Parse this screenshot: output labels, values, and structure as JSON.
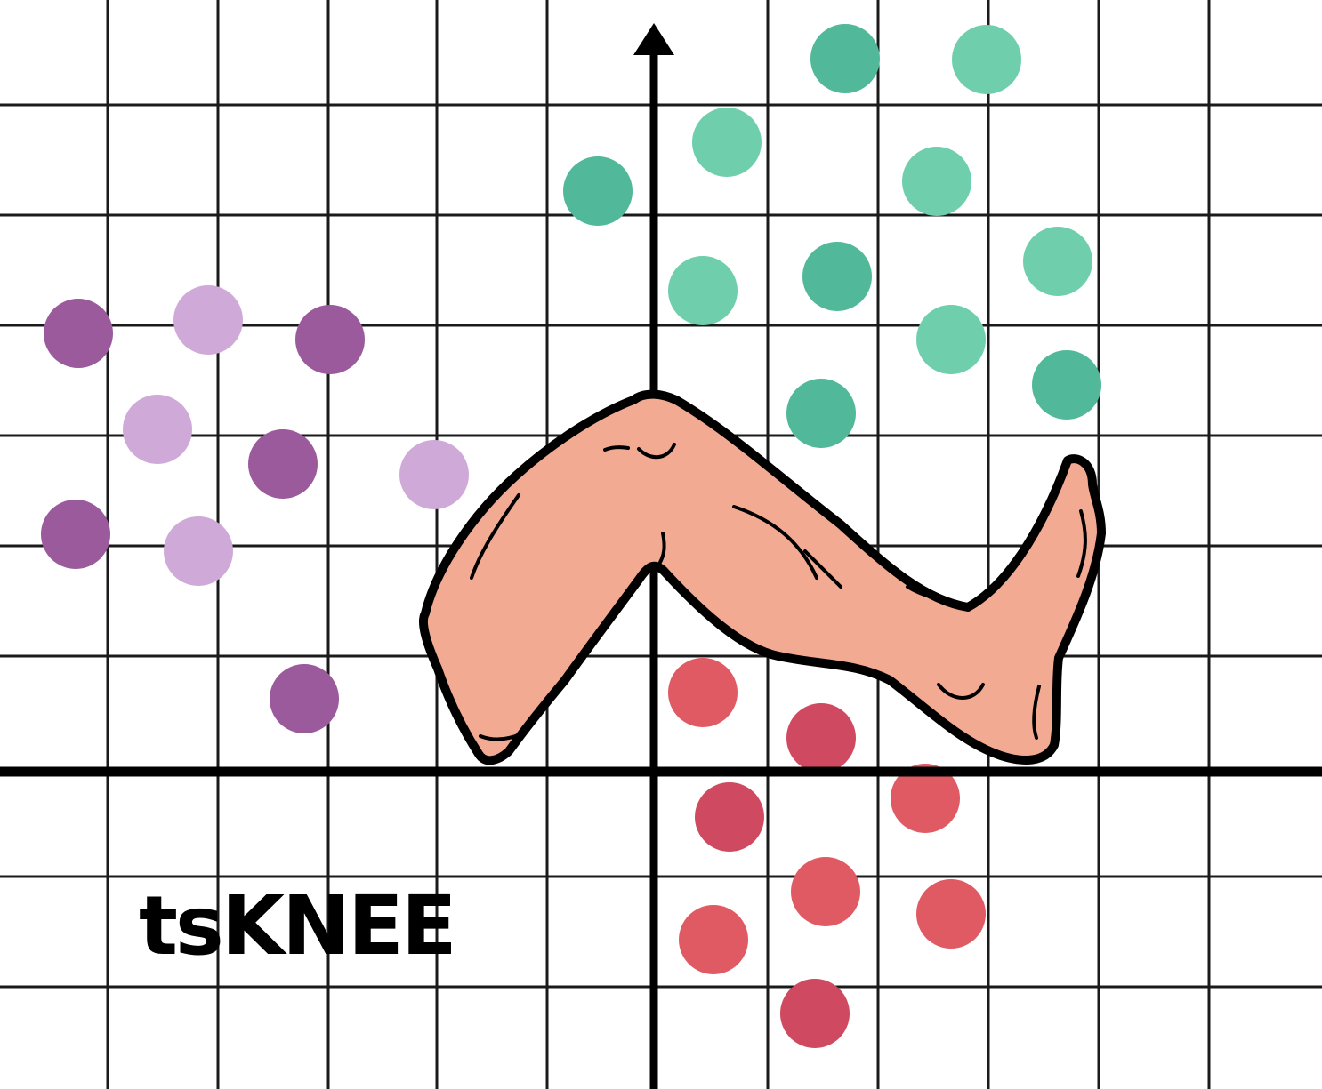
{
  "logo": {
    "text": "tsKNEE"
  },
  "colors": {
    "grid": "#1a1a1a",
    "axis": "#000000",
    "leg_fill": "#f2aa92",
    "leg_stroke": "#000000",
    "cluster_purple_dark": "#9a5a9b",
    "cluster_purple_light": "#cfaad8",
    "cluster_green_dark": "#52b89a",
    "cluster_green_light": "#6fcfad",
    "cluster_red": "#e05a64",
    "cluster_red_dark": "#cf4a60"
  },
  "clusters": [
    {
      "name": "purple",
      "points": [
        {
          "tone": "dark"
        },
        {
          "tone": "light"
        },
        {
          "tone": "dark"
        },
        {
          "tone": "light"
        },
        {
          "tone": "dark"
        },
        {
          "tone": "light"
        },
        {
          "tone": "dark"
        },
        {
          "tone": "light"
        },
        {
          "tone": "dark"
        }
      ]
    },
    {
      "name": "green",
      "points": [
        {
          "tone": "dark"
        },
        {
          "tone": "light"
        },
        {
          "tone": "light"
        },
        {
          "tone": "dark"
        },
        {
          "tone": "light"
        },
        {
          "tone": "light"
        },
        {
          "tone": "dark"
        },
        {
          "tone": "light"
        },
        {
          "tone": "light"
        },
        {
          "tone": "dark"
        },
        {
          "tone": "dark"
        }
      ]
    },
    {
      "name": "red",
      "points": [
        {
          "tone": "light"
        },
        {
          "tone": "dark"
        },
        {
          "tone": "dark"
        },
        {
          "tone": "light"
        },
        {
          "tone": "light"
        },
        {
          "tone": "light"
        },
        {
          "tone": "light"
        },
        {
          "tone": "dark"
        }
      ]
    }
  ]
}
